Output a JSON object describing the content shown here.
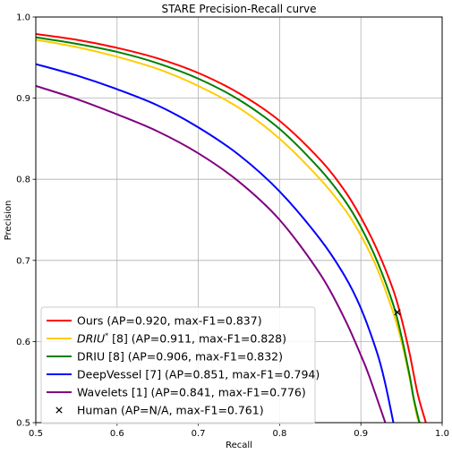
{
  "chart_data": {
    "type": "line",
    "title": "STARE Precision-Recall curve",
    "xlabel": "Recall",
    "ylabel": "Precision",
    "xlim": [
      0.5,
      1.0
    ],
    "ylim": [
      0.5,
      1.0
    ],
    "xticks": [
      "0.5",
      "0.6",
      "0.7",
      "0.8",
      "0.9",
      "1.0"
    ],
    "yticks": [
      "0.5",
      "0.6",
      "0.7",
      "0.8",
      "0.9",
      "1.0"
    ],
    "grid": true,
    "legend_position": "lower-left",
    "series": [
      {
        "name": "Ours (AP=0.920, max-F1=0.837)",
        "color": "#ff0000",
        "x": [
          0.5,
          0.55,
          0.6,
          0.65,
          0.7,
          0.75,
          0.8,
          0.85,
          0.88,
          0.9,
          0.92,
          0.94,
          0.95,
          0.96,
          0.97,
          0.98
        ],
        "y": [
          0.979,
          0.972,
          0.962,
          0.949,
          0.931,
          0.906,
          0.872,
          0.824,
          0.786,
          0.753,
          0.713,
          0.663,
          0.628,
          0.585,
          0.535,
          0.5
        ]
      },
      {
        "name": "DRIU* [8] (AP=0.911, max-F1=0.828)",
        "name_main": "DRIU",
        "name_sup": "*",
        "name_rest": " [8] (AP=0.911, max-F1=0.828)",
        "color": "#ffcc00",
        "x": [
          0.5,
          0.55,
          0.6,
          0.65,
          0.7,
          0.75,
          0.8,
          0.85,
          0.88,
          0.9,
          0.92,
          0.94,
          0.95,
          0.96,
          0.97,
          0.98
        ],
        "y": [
          0.972,
          0.963,
          0.951,
          0.936,
          0.915,
          0.888,
          0.85,
          0.8,
          0.763,
          0.731,
          0.69,
          0.635,
          0.6,
          0.555,
          0.505,
          0.5
        ]
      },
      {
        "name": "DRIU [8] (AP=0.906, max-F1=0.832)",
        "color": "#008000",
        "x": [
          0.5,
          0.55,
          0.6,
          0.65,
          0.7,
          0.75,
          0.8,
          0.85,
          0.88,
          0.9,
          0.92,
          0.94,
          0.95,
          0.96,
          0.965,
          0.972
        ],
        "y": [
          0.975,
          0.967,
          0.957,
          0.943,
          0.924,
          0.898,
          0.862,
          0.812,
          0.774,
          0.741,
          0.699,
          0.645,
          0.606,
          0.558,
          0.53,
          0.5
        ]
      },
      {
        "name": "DeepVessel [7] (AP=0.851, max-F1=0.794)",
        "color": "#0000ff",
        "x": [
          0.5,
          0.55,
          0.6,
          0.65,
          0.7,
          0.75,
          0.8,
          0.85,
          0.88,
          0.9,
          0.92,
          0.93,
          0.94
        ],
        "y": [
          0.942,
          0.928,
          0.911,
          0.891,
          0.864,
          0.83,
          0.785,
          0.726,
          0.681,
          0.641,
          0.586,
          0.548,
          0.5
        ]
      },
      {
        "name": "Wavelets [1] (AP=0.841, max-F1=0.776)",
        "color": "#800080",
        "x": [
          0.5,
          0.55,
          0.6,
          0.65,
          0.7,
          0.75,
          0.8,
          0.85,
          0.88,
          0.9,
          0.91,
          0.93
        ],
        "y": [
          0.915,
          0.899,
          0.88,
          0.859,
          0.832,
          0.797,
          0.75,
          0.683,
          0.628,
          0.583,
          0.558,
          0.5
        ]
      }
    ],
    "markers": [
      {
        "name": "Human (AP=N/A, max-F1=0.761)",
        "symbol": "x",
        "color": "#000000",
        "x": 0.945,
        "y": 0.636
      }
    ]
  }
}
